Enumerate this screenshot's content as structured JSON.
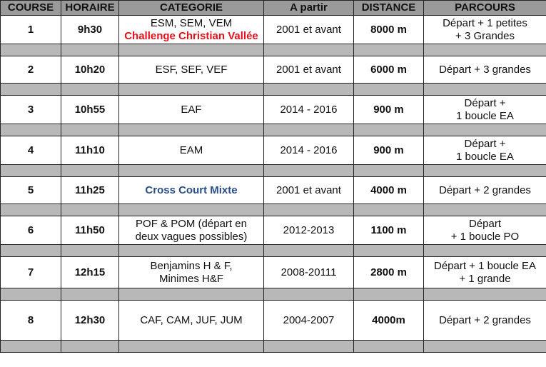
{
  "headers": [
    "COURSE",
    "HORAIRE",
    "CATEGORIE",
    "A partir",
    "DISTANCE",
    "PARCOURS"
  ],
  "rows": [
    {
      "course": "1",
      "horaire": "9h30",
      "categorie": [
        "ESM, SEM, VEM"
      ],
      "categorie_highlight": "Challenge Christian Vallée",
      "a_partir": "2001 et avant",
      "distance": "8000 m",
      "parcours": [
        "Départ + 1 petites",
        "+ 3 Grandes"
      ]
    },
    {
      "course": "2",
      "horaire": "10h20",
      "categorie": [
        "ESF, SEF, VEF"
      ],
      "a_partir": "2001 et avant",
      "distance": "6000 m",
      "parcours": [
        "Départ + 3 grandes"
      ]
    },
    {
      "course": "3",
      "horaire": "10h55",
      "categorie": [
        "EAF"
      ],
      "a_partir": "2014 - 2016",
      "distance": "900 m",
      "parcours": [
        "Départ +",
        "1 boucle EA"
      ]
    },
    {
      "course": "4",
      "horaire": "11h10",
      "categorie": [
        "EAM"
      ],
      "a_partir": "2014 - 2016",
      "distance": "900 m",
      "parcours": [
        "Départ +",
        "1 boucle EA"
      ]
    },
    {
      "course": "5",
      "horaire": "11h25",
      "categorie_special": "Cross Court Mixte",
      "a_partir": "2001 et avant",
      "distance": "4000 m",
      "parcours": [
        "Départ + 2 grandes"
      ]
    },
    {
      "course": "6",
      "horaire": "11h50",
      "categorie": [
        "POF & POM (départ en",
        "deux vagues possibles)"
      ],
      "a_partir": "2012-2013",
      "distance": "1100 m",
      "parcours": [
        "Départ",
        "+ 1 boucle PO"
      ]
    },
    {
      "course": "7",
      "horaire": "12h15",
      "categorie": [
        "Benjamins H & F,",
        "Minimes H&F"
      ],
      "a_partir": "2008-20111",
      "distance": "2800 m",
      "parcours": [
        "Départ + 1 boucle EA",
        "+ 1 grande"
      ]
    },
    {
      "course": "8",
      "horaire": "12h30",
      "categorie": [
        "CAF, CAM, JUF, JUM"
      ],
      "a_partir": "2004-2007",
      "distance": "4000m",
      "parcours": [
        "Départ + 2 grandes"
      ]
    }
  ]
}
